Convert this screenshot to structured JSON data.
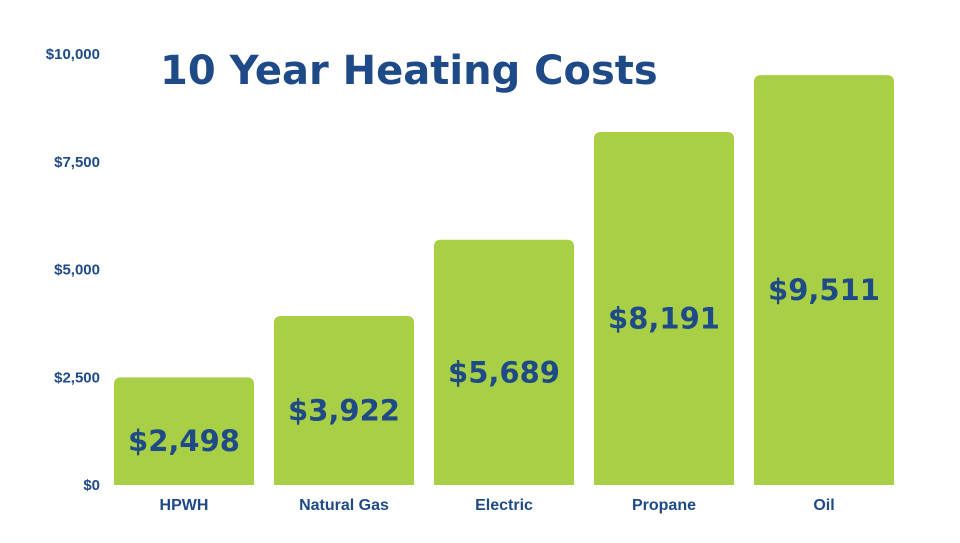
{
  "chart_data": {
    "type": "bar",
    "title": "10 Year Heating Costs",
    "xlabel": "",
    "ylabel": "",
    "categories": [
      "HPWH",
      "Natural Gas",
      "Electric",
      "Propane",
      "Oil"
    ],
    "values": [
      2498,
      3922,
      5689,
      8191,
      9511
    ],
    "data_labels": [
      "$2,498",
      "$3,922",
      "$5,689",
      "$8,191",
      "$9,511"
    ],
    "ylim": [
      0,
      10000
    ],
    "yticks": [
      0,
      2500,
      5000,
      7500,
      10000
    ],
    "ytick_labels": [
      "$0",
      "$2,500",
      "$5,000",
      "$7,500",
      "$10,000"
    ],
    "grid": false,
    "legend": "none",
    "colors": {
      "bar": "#a8cf45",
      "text": "#1e4a87"
    }
  }
}
